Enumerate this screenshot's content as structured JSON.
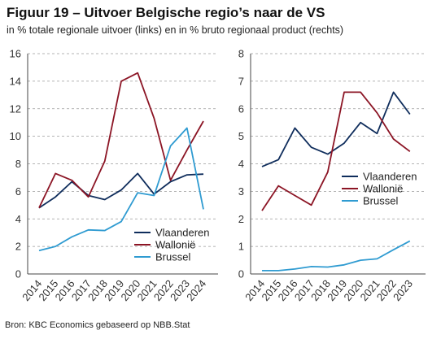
{
  "header": {
    "title": "Figuur 19 – Uitvoer Belgische regio’s naar de VS",
    "subtitle": "in % totale regionale uitvoer (links) en in % bruto regionaal product (rechts)"
  },
  "footer": {
    "source": "Bron: KBC Economics gebaseerd op NBB.Stat"
  },
  "colors": {
    "Vlaanderen": "#0f2d5c",
    "Wallonië": "#8c1525",
    "Brussel": "#2f9bd1",
    "grid": "#9a9a9a",
    "axis": "#444444"
  },
  "chart_data": [
    {
      "type": "line",
      "x": [
        "2014",
        "2015",
        "2016",
        "2017",
        "2018",
        "2019",
        "2020",
        "2021",
        "2022",
        "2023",
        "2024"
      ],
      "ylim": [
        0,
        16
      ],
      "yticks": [
        0,
        2,
        4,
        6,
        8,
        10,
        12,
        14,
        16
      ],
      "grid": "horizontal dashed",
      "legend": "lower-right",
      "series": [
        {
          "name": "Vlaanderen",
          "values": [
            4.8,
            5.6,
            6.7,
            5.7,
            5.4,
            6.1,
            7.3,
            5.8,
            6.7,
            7.2,
            7.25
          ]
        },
        {
          "name": "Wallonië",
          "values": [
            4.8,
            7.3,
            6.8,
            5.6,
            8.2,
            14.0,
            14.6,
            11.3,
            6.8,
            9.0,
            11.1
          ]
        },
        {
          "name": "Brussel",
          "values": [
            1.7,
            2.0,
            2.7,
            3.2,
            3.15,
            3.8,
            5.9,
            5.7,
            9.3,
            10.6,
            4.7
          ]
        }
      ]
    },
    {
      "type": "line",
      "x": [
        "2014",
        "2015",
        "2016",
        "2017",
        "2018",
        "2019",
        "2020",
        "2021",
        "2022",
        "2023"
      ],
      "ylim": [
        0,
        8
      ],
      "yticks": [
        0,
        1,
        2,
        3,
        4,
        5,
        6,
        7,
        8
      ],
      "grid": "horizontal dashed",
      "legend": "center-right",
      "series": [
        {
          "name": "Vlaanderen",
          "values": [
            3.9,
            4.15,
            5.3,
            4.6,
            4.35,
            4.75,
            5.5,
            5.1,
            6.6,
            5.8
          ]
        },
        {
          "name": "Wallonië",
          "values": [
            2.3,
            3.2,
            2.85,
            2.5,
            3.7,
            6.6,
            6.6,
            5.85,
            4.9,
            4.45
          ]
        },
        {
          "name": "Brussel",
          "values": [
            0.12,
            0.12,
            0.18,
            0.27,
            0.25,
            0.33,
            0.5,
            0.55,
            0.88,
            1.2
          ]
        }
      ]
    }
  ]
}
